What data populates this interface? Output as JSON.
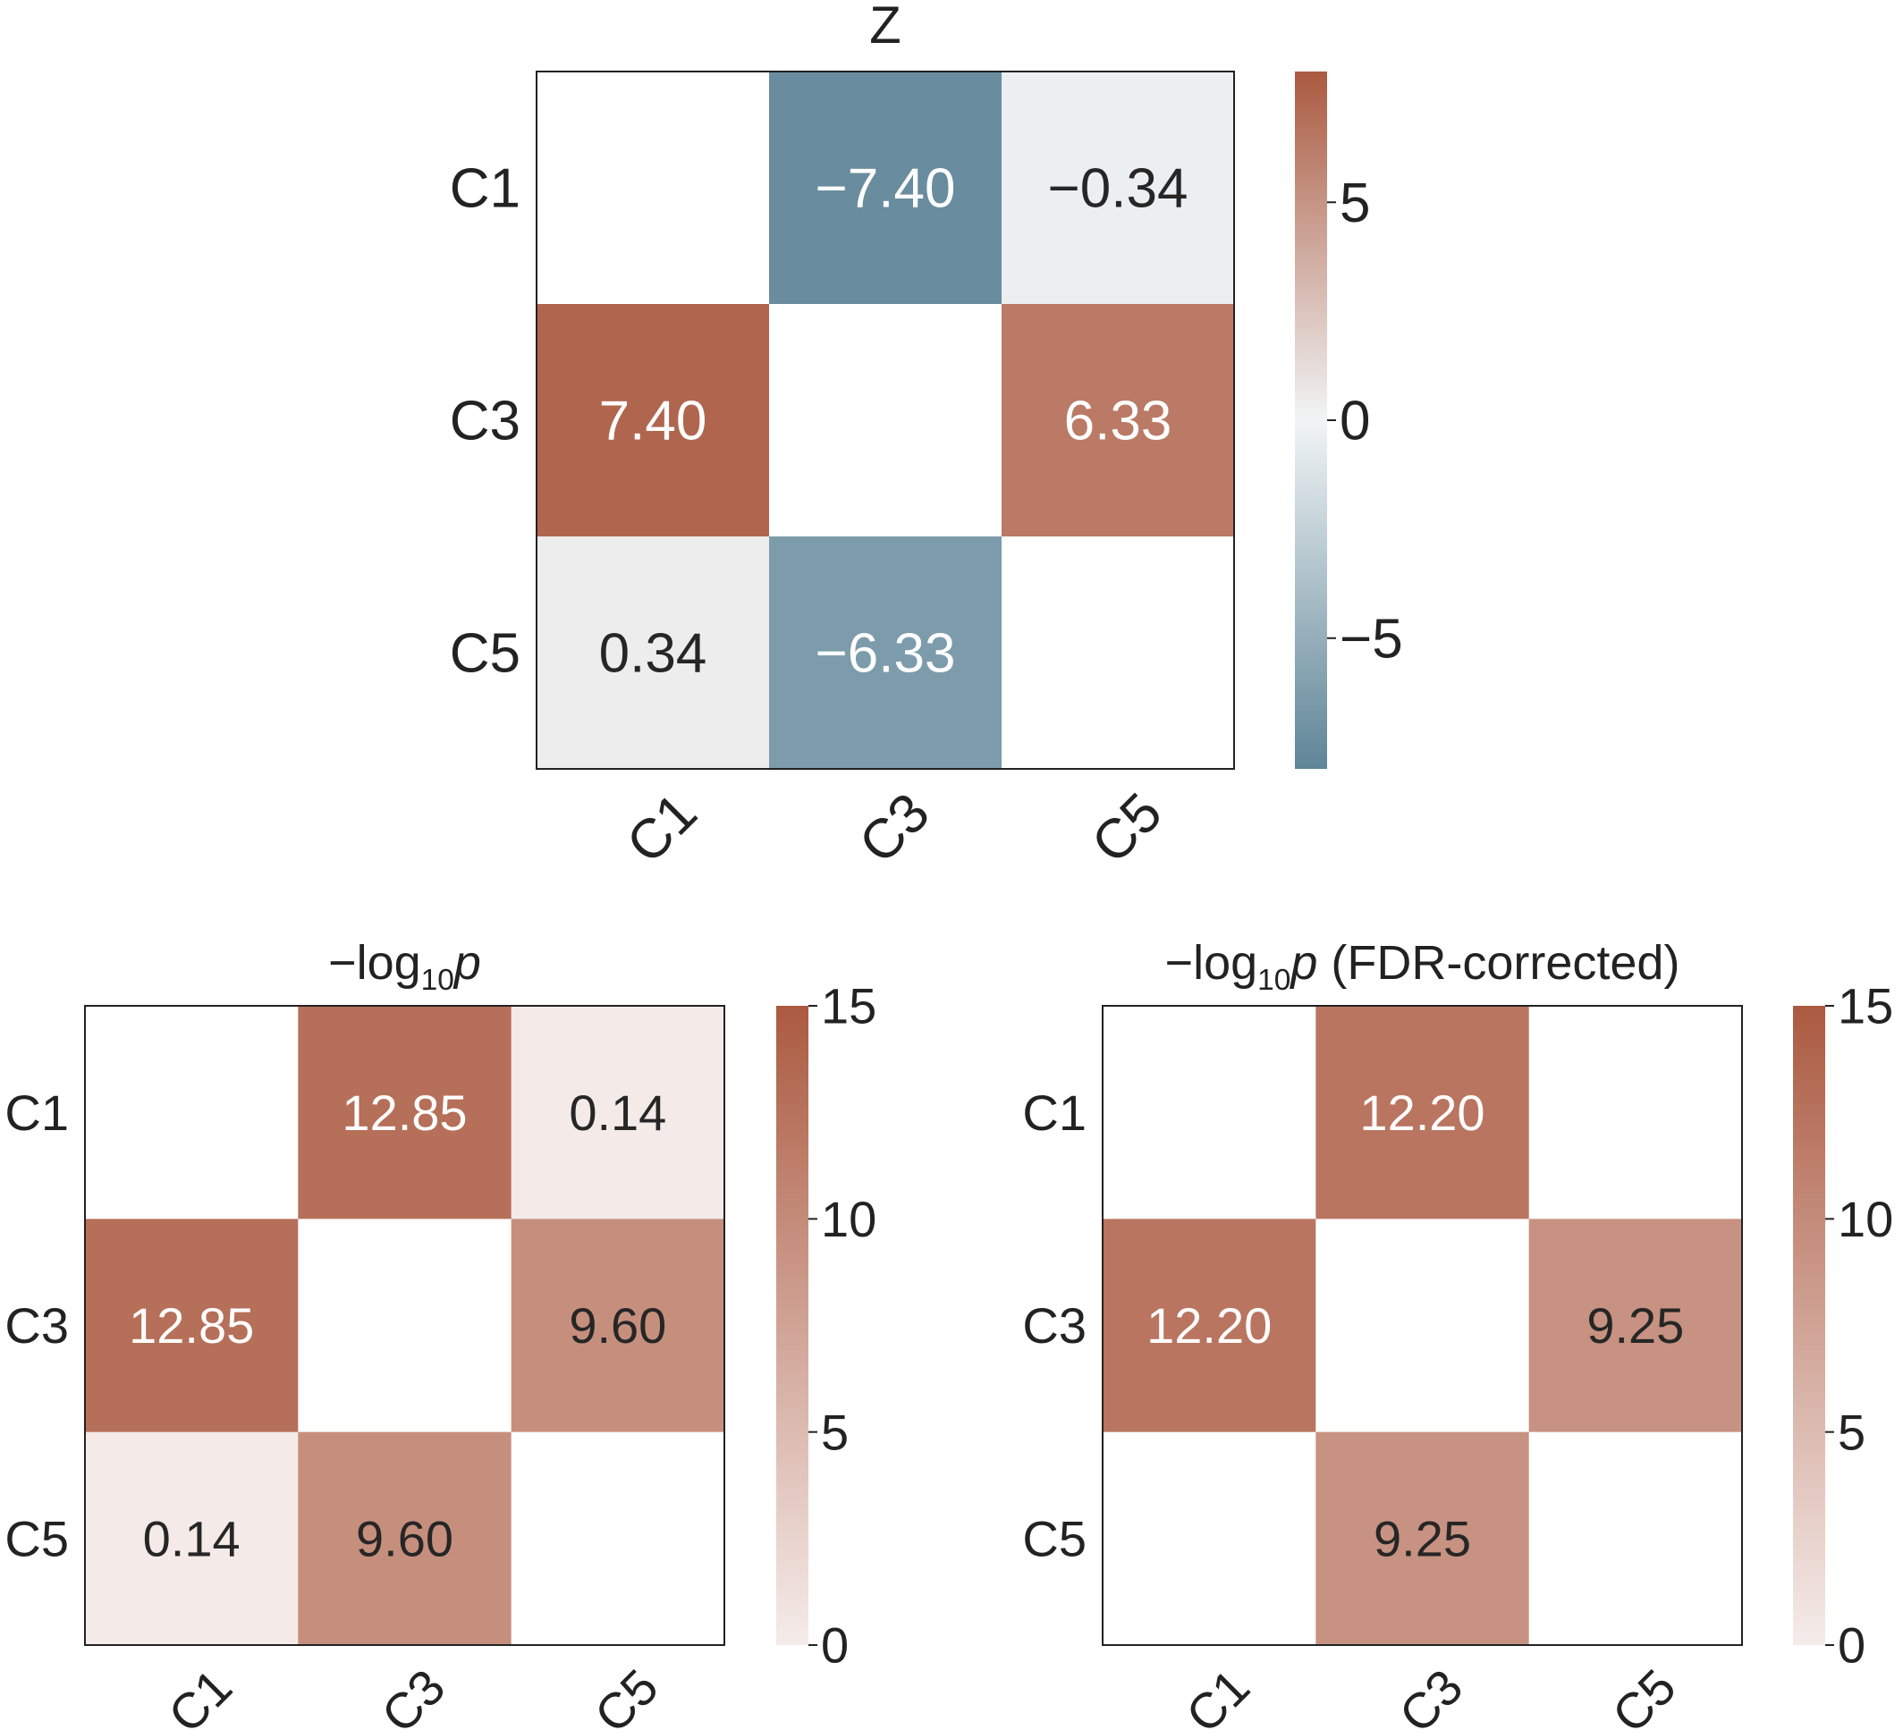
{
  "chart_data": [
    {
      "type": "heatmap",
      "title": "Z",
      "title_parts": [
        "Z"
      ],
      "rows": [
        "C1",
        "C3",
        "C5"
      ],
      "cols": [
        "C1",
        "C3",
        "C5"
      ],
      "values": [
        [
          null,
          -7.4,
          -0.34
        ],
        [
          7.4,
          null,
          6.33
        ],
        [
          0.34,
          -6.33,
          null
        ]
      ],
      "labels": [
        [
          "",
          "−7.40",
          "−0.34"
        ],
        [
          "7.40",
          "",
          "6.33"
        ],
        [
          "0.34",
          "−6.33",
          ""
        ]
      ],
      "vmin": -8,
      "vmax": 8,
      "colorbar_ticks": [
        5,
        0,
        -5
      ],
      "colorbar_tick_labels": [
        "5",
        "0",
        "−5"
      ],
      "colormap": "diverging",
      "colors": {
        "low": "#5e8597",
        "mid": "#f1f4f5",
        "high": "#ab5a40"
      }
    },
    {
      "type": "heatmap",
      "title": "−log10p",
      "title_parts": [
        "−log",
        "10",
        "p",
        ""
      ],
      "rows": [
        "C1",
        "C3",
        "C5"
      ],
      "cols": [
        "C1",
        "C3",
        "C5"
      ],
      "values": [
        [
          null,
          12.85,
          0.14
        ],
        [
          12.85,
          null,
          9.6
        ],
        [
          0.14,
          9.6,
          null
        ]
      ],
      "labels": [
        [
          "",
          "12.85",
          "0.14"
        ],
        [
          "12.85",
          "",
          "9.60"
        ],
        [
          "0.14",
          "9.60",
          ""
        ]
      ],
      "vmin": 0,
      "vmax": 15,
      "colorbar_ticks": [
        15,
        10,
        5,
        0
      ],
      "colorbar_tick_labels": [
        "15",
        "10",
        "5",
        "0"
      ],
      "colormap": "sequential",
      "colors": {
        "low": "#f5ecea",
        "high": "#ab5a40"
      }
    },
    {
      "type": "heatmap",
      "title": "−log10p (FDR-corrected)",
      "title_parts": [
        "−log",
        "10",
        "p",
        " (FDR-corrected)"
      ],
      "rows": [
        "C1",
        "C3",
        "C5"
      ],
      "cols": [
        "C1",
        "C3",
        "C5"
      ],
      "values": [
        [
          null,
          12.2,
          null
        ],
        [
          12.2,
          null,
          9.25
        ],
        [
          null,
          9.25,
          null
        ]
      ],
      "labels": [
        [
          "",
          "12.20",
          ""
        ],
        [
          "12.20",
          "",
          "9.25"
        ],
        [
          "",
          "9.25",
          ""
        ]
      ],
      "vmin": 0,
      "vmax": 15,
      "colorbar_ticks": [
        15,
        10,
        5,
        0
      ],
      "colorbar_tick_labels": [
        "15",
        "10",
        "5",
        "0"
      ],
      "colormap": "sequential",
      "colors": {
        "low": "#f5ecea",
        "high": "#ab5a40"
      }
    }
  ]
}
